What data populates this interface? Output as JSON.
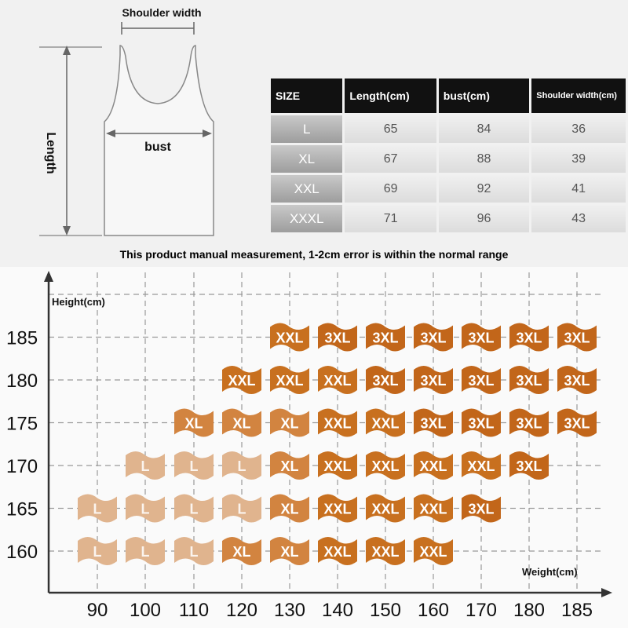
{
  "diagram": {
    "shoulder_label": "Shoulder width",
    "length_label": "Length",
    "bust_label": "bust"
  },
  "table": {
    "headers": [
      "SIZE",
      "Length(cm)",
      "bust(cm)",
      "Shoulder width(cm)"
    ],
    "rows": [
      [
        "L",
        "65",
        "84",
        "36"
      ],
      [
        "XL",
        "67",
        "88",
        "39"
      ],
      [
        "XXL",
        "69",
        "92",
        "41"
      ],
      [
        "XXXL",
        "71",
        "96",
        "43"
      ]
    ]
  },
  "note": "This product manual measurement, 1-2cm error is within the normal range",
  "colors": {
    "L": "#e0b48e",
    "XL": "#d28440",
    "XXL": "#c8701f",
    "3XL": "#c2661a",
    "axis": "#333333",
    "grid": "#999999"
  },
  "chart_data": {
    "type": "heatmap",
    "xlabel": "Weight(cm)",
    "ylabel": "Height(cm)",
    "x_ticks": [
      "90",
      "100",
      "110",
      "120",
      "130",
      "140",
      "150",
      "160",
      "170",
      "180",
      "185"
    ],
    "y_ticks": [
      "160",
      "165",
      "170",
      "175",
      "180",
      "185"
    ],
    "x_values": [
      90,
      100,
      110,
      120,
      130,
      140,
      150,
      160,
      170,
      180,
      185
    ],
    "y_values": [
      160,
      165,
      170,
      175,
      180,
      185
    ],
    "cells": [
      {
        "x": 90,
        "y": 165,
        "size": "L"
      },
      {
        "x": 100,
        "y": 165,
        "size": "L"
      },
      {
        "x": 110,
        "y": 165,
        "size": "L"
      },
      {
        "x": 120,
        "y": 165,
        "size": "L"
      },
      {
        "x": 130,
        "y": 165,
        "size": "XL"
      },
      {
        "x": 140,
        "y": 165,
        "size": "XXL"
      },
      {
        "x": 150,
        "y": 165,
        "size": "XXL"
      },
      {
        "x": 160,
        "y": 165,
        "size": "XXL"
      },
      {
        "x": 170,
        "y": 165,
        "size": "3XL"
      },
      {
        "x": 90,
        "y": 160,
        "size": "L"
      },
      {
        "x": 100,
        "y": 160,
        "size": "L"
      },
      {
        "x": 110,
        "y": 160,
        "size": "L"
      },
      {
        "x": 120,
        "y": 160,
        "size": "XL"
      },
      {
        "x": 130,
        "y": 160,
        "size": "XL"
      },
      {
        "x": 140,
        "y": 160,
        "size": "XXL"
      },
      {
        "x": 150,
        "y": 160,
        "size": "XXL"
      },
      {
        "x": 160,
        "y": 160,
        "size": "XXL"
      },
      {
        "x": 100,
        "y": 170,
        "size": "L"
      },
      {
        "x": 110,
        "y": 170,
        "size": "L"
      },
      {
        "x": 120,
        "y": 170,
        "size": "L"
      },
      {
        "x": 130,
        "y": 170,
        "size": "XL"
      },
      {
        "x": 140,
        "y": 170,
        "size": "XXL"
      },
      {
        "x": 150,
        "y": 170,
        "size": "XXL"
      },
      {
        "x": 160,
        "y": 170,
        "size": "XXL"
      },
      {
        "x": 170,
        "y": 170,
        "size": "XXL"
      },
      {
        "x": 180,
        "y": 170,
        "size": "3XL"
      },
      {
        "x": 110,
        "y": 175,
        "size": "XL"
      },
      {
        "x": 120,
        "y": 175,
        "size": "XL"
      },
      {
        "x": 130,
        "y": 175,
        "size": "XL"
      },
      {
        "x": 140,
        "y": 175,
        "size": "XXL"
      },
      {
        "x": 150,
        "y": 175,
        "size": "XXL"
      },
      {
        "x": 160,
        "y": 175,
        "size": "3XL"
      },
      {
        "x": 170,
        "y": 175,
        "size": "3XL"
      },
      {
        "x": 180,
        "y": 175,
        "size": "3XL"
      },
      {
        "x": 185,
        "y": 175,
        "size": "3XL"
      },
      {
        "x": 120,
        "y": 180,
        "size": "XXL"
      },
      {
        "x": 130,
        "y": 180,
        "size": "XXL"
      },
      {
        "x": 140,
        "y": 180,
        "size": "XXL"
      },
      {
        "x": 150,
        "y": 180,
        "size": "3XL"
      },
      {
        "x": 160,
        "y": 180,
        "size": "3XL"
      },
      {
        "x": 170,
        "y": 180,
        "size": "3XL"
      },
      {
        "x": 180,
        "y": 180,
        "size": "3XL"
      },
      {
        "x": 185,
        "y": 180,
        "size": "3XL"
      },
      {
        "x": 130,
        "y": 185,
        "size": "XXL"
      },
      {
        "x": 140,
        "y": 185,
        "size": "3XL"
      },
      {
        "x": 150,
        "y": 185,
        "size": "3XL"
      },
      {
        "x": 160,
        "y": 185,
        "size": "3XL"
      },
      {
        "x": 170,
        "y": 185,
        "size": "3XL"
      },
      {
        "x": 180,
        "y": 185,
        "size": "3XL"
      },
      {
        "x": 185,
        "y": 185,
        "size": "3XL"
      }
    ]
  }
}
